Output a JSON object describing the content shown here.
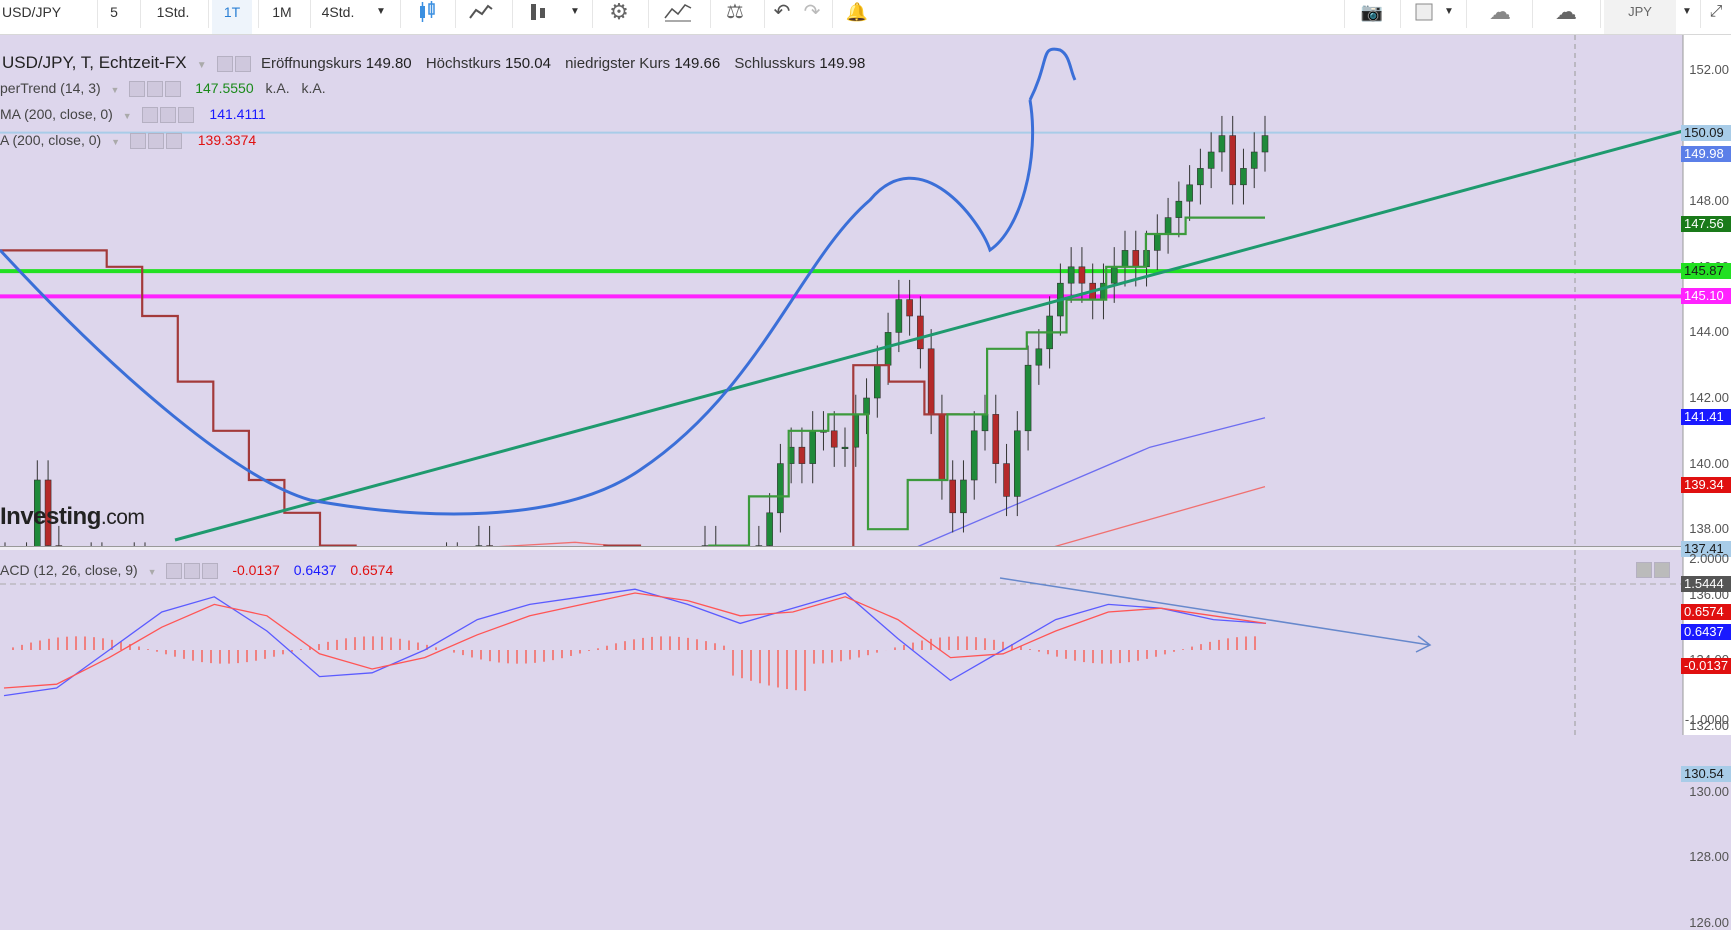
{
  "toolbar": {
    "symbol": "USD/JPY",
    "intervals": [
      "5",
      "1Std.",
      "1T",
      "1M",
      "4Std."
    ],
    "active_interval": "1T",
    "currency": "JPY"
  },
  "header": {
    "title": "USD/JPY, T, Echtzeit-FX",
    "open_label": "Eröffnungskurs",
    "open": "149.80",
    "high_label": "Höchstkurs",
    "high": "150.04",
    "low_label": "niedrigster Kurs",
    "low": "149.66",
    "close_label": "Schlusskurs",
    "close": "149.98"
  },
  "indicators": [
    {
      "name": "perTrend (14, 3)",
      "value": "147.5550",
      "extra1": "k.A.",
      "extra2": "k.A.",
      "color": "#1a8a1a"
    },
    {
      "name": "MA (200, close, 0)",
      "value": "141.4111",
      "color": "#1a1aff"
    },
    {
      "name": "A (200, close, 0)",
      "value": "139.3374",
      "color": "#e01010"
    }
  ],
  "macd": {
    "name": "ACD (12, 26, close, 9)",
    "hist": "-0.0137",
    "macd": "0.6437",
    "signal": "0.6574"
  },
  "logo": {
    "main": "Investing",
    "suffix": ".com"
  },
  "price_axis": {
    "ticks": [
      "152.00",
      "150.00",
      "148.00",
      "146.00",
      "144.00",
      "142.00",
      "140.00",
      "138.00",
      "136.00",
      "134.00",
      "132.00",
      "130.00",
      "128.00",
      "126.00"
    ],
    "labels": [
      {
        "text": "150.09",
        "bg": "#a8cce8",
        "fg": "#1a1a1a"
      },
      {
        "text": "149.98",
        "bg": "#5b7fe8",
        "fg": "#ffffff"
      },
      {
        "text": "147.56",
        "bg": "#1a7a1a",
        "fg": "#ffffff"
      },
      {
        "text": "145.87",
        "bg": "#22e022",
        "fg": "#1a1a1a"
      },
      {
        "text": "145.10",
        "bg": "#ff22ff",
        "fg": "#ffffff"
      },
      {
        "text": "141.41",
        "bg": "#1a1aff",
        "fg": "#ffffff"
      },
      {
        "text": "139.34",
        "bg": "#e01010",
        "fg": "#ffffff"
      },
      {
        "text": "137.41",
        "bg": "#a8cce8",
        "fg": "#1a1a1a"
      },
      {
        "text": "130.54",
        "bg": "#a8cce8",
        "fg": "#1a1a1a"
      }
    ]
  },
  "macd_axis": {
    "ticks": [
      "2.0000",
      "-1.0000"
    ],
    "labels": [
      {
        "text": "1.5444",
        "bg": "#555555",
        "fg": "#ffffff"
      },
      {
        "text": "0.6574",
        "bg": "#e01010",
        "fg": "#ffffff"
      },
      {
        "text": "0.6437",
        "bg": "#1a1aff",
        "fg": "#ffffff"
      },
      {
        "text": "-0.0137",
        "bg": "#e01010",
        "fg": "#ffffff"
      }
    ]
  },
  "chart_data": {
    "type": "line",
    "ylim": [
      126,
      153
    ],
    "horizontal_levels": [
      {
        "value": 150.09,
        "color": "#a8cce8"
      },
      {
        "value": 145.87,
        "color": "#22e022"
      },
      {
        "value": 145.1,
        "color": "#ff22ff"
      },
      {
        "value": 137.41,
        "color": "#a8cce8"
      },
      {
        "value": 130.54,
        "color": "#a8cce8"
      }
    ],
    "close_path": [
      136.5,
      135.0,
      137.0,
      139.5,
      137.5,
      135.5,
      133.5,
      135.5,
      137.0,
      136.0,
      134.5,
      136.0,
      137.0,
      133.0,
      131.0,
      131.5,
      132.5,
      133.5,
      133.0,
      131.0,
      131.0,
      129.5,
      128.0,
      128.5,
      129.5,
      129.0,
      130.5,
      130.0,
      129.0,
      129.5,
      130.0,
      132.5,
      132.0,
      130.5,
      131.5,
      133.0,
      134.0,
      135.0,
      134.5,
      136.0,
      136.5,
      137.0,
      136.0,
      136.5,
      137.5,
      136.5,
      134.5,
      133.0,
      132.0,
      131.5,
      131.0,
      131.5,
      132.0,
      132.5,
      133.0,
      132.5,
      133.5,
      133.5,
      134.0,
      135.0,
      134.5,
      134.5,
      133.5,
      134.5,
      136.5,
      137.5,
      135.5,
      134.5,
      135.0,
      136.0,
      137.5,
      138.5,
      140.0,
      140.5,
      140.0,
      141.0,
      141.0,
      140.5,
      140.5,
      141.5,
      142.0,
      143.0,
      144.0,
      145.0,
      144.5,
      143.5,
      141.5,
      139.5,
      138.5,
      139.5,
      141.0,
      141.5,
      140.0,
      139.0,
      141.0,
      143.0,
      143.5,
      144.5,
      145.5,
      146.0,
      145.5,
      145.0,
      145.5,
      146.0,
      146.5,
      146.0,
      146.5,
      147.0,
      147.5,
      148.0,
      148.5,
      149.0,
      149.5,
      150.0,
      148.5,
      149.0,
      149.5,
      150.0
    ],
    "supertrend_red": [
      146.5,
      146.5,
      146.5,
      146.0,
      144.5,
      142.5,
      141.0,
      139.5,
      138.5,
      137.5,
      136.0,
      134.5,
      134.0,
      134.0,
      133.5,
      133.0,
      133.0,
      137.5,
      137.0,
      136.5,
      136.0,
      135.5,
      135.5,
      135.5,
      143.0,
      142.5,
      141.5
    ],
    "supertrend_green": [
      129.0,
      131.5,
      133.0,
      134.5,
      136.0,
      136.0,
      135.5,
      131.0,
      136.0,
      137.5,
      139.0,
      141.0,
      141.5,
      138.0,
      139.5,
      141.5,
      143.5,
      144.0,
      145.0,
      146.0,
      147.0,
      147.5,
      147.5
    ],
    "ma_blue": [
      133.0,
      132.6,
      132.4,
      132.5,
      133.0,
      133.8,
      134.8,
      136.0,
      137.5,
      139.0,
      140.5,
      141.4
    ],
    "ma_red": [
      132.5,
      134.0,
      135.5,
      136.8,
      137.4,
      137.6,
      137.3,
      136.9,
      136.7,
      137.3,
      138.3,
      139.3
    ],
    "macd_series": [
      {
        "name": "MACD",
        "color": "#5b5bff",
        "values": [
          -1.2,
          -1.0,
          0.0,
          1.0,
          1.4,
          0.5,
          -0.7,
          -0.6,
          0.0,
          0.8,
          1.2,
          1.4,
          1.6,
          1.2,
          0.7,
          1.1,
          1.5,
          0.3,
          -0.8,
          0.0,
          0.8,
          1.2,
          1.1,
          0.8,
          0.7
        ]
      },
      {
        "name": "Signal",
        "color": "#ff5555",
        "values": [
          -1.0,
          -0.9,
          -0.2,
          0.6,
          1.2,
          0.9,
          -0.1,
          -0.5,
          -0.2,
          0.4,
          0.9,
          1.2,
          1.5,
          1.3,
          0.9,
          1.0,
          1.4,
          0.8,
          -0.2,
          -0.1,
          0.5,
          1.0,
          1.1,
          0.9,
          0.7
        ]
      }
    ]
  }
}
